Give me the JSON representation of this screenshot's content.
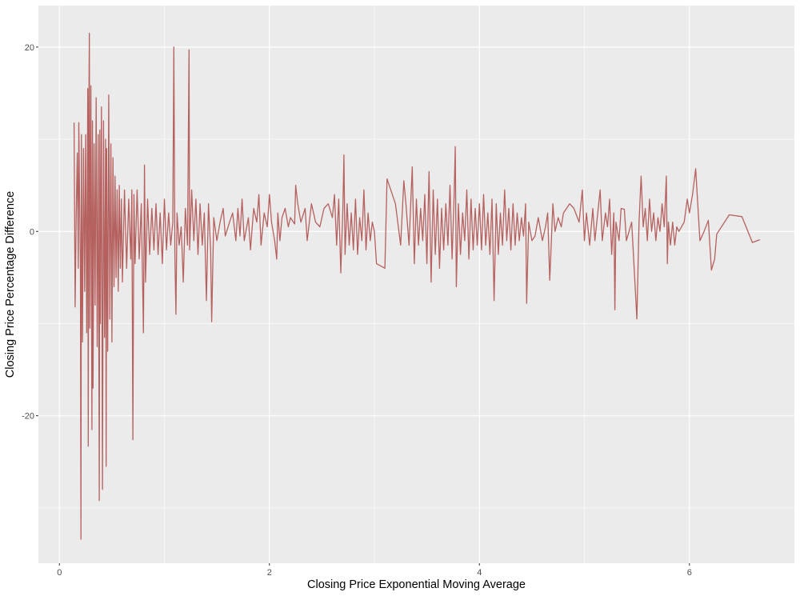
{
  "chart_data": {
    "type": "line",
    "title": "",
    "xlabel": "Closing Price Exponential Moving Average",
    "ylabel": "Closing Price Percentage Difference",
    "xlim": [
      -0.2,
      7.0
    ],
    "ylim": [
      -36.0,
      24.5
    ],
    "x_ticks": [
      0,
      2,
      4,
      6
    ],
    "x_tick_labels": [
      "0",
      "2",
      "4",
      "6"
    ],
    "x_minor_ticks": [
      1,
      3,
      5
    ],
    "y_ticks": [
      -20,
      0,
      20
    ],
    "y_tick_labels": [
      "-20",
      "0",
      "20"
    ],
    "y_minor_ticks": [
      -30,
      -10,
      10
    ],
    "grid": true,
    "legend": "none",
    "colors": {
      "panel_background": "#ebebeb",
      "grid": "#ffffff",
      "line": "#b5615f"
    },
    "series": [
      {
        "points": [
          [
            0.14,
            11.8
          ],
          [
            0.15,
            -8.2
          ],
          [
            0.16,
            2.0
          ],
          [
            0.17,
            8.5
          ],
          [
            0.18,
            -4.0
          ],
          [
            0.185,
            11.8
          ],
          [
            0.19,
            6.0
          ],
          [
            0.2,
            -3.5
          ],
          [
            0.205,
            -33.4
          ],
          [
            0.21,
            10.5
          ],
          [
            0.22,
            -12.0
          ],
          [
            0.23,
            9.0
          ],
          [
            0.24,
            -6.5
          ],
          [
            0.25,
            10.5
          ],
          [
            0.26,
            -11.0
          ],
          [
            0.27,
            15.5
          ],
          [
            0.275,
            -23.3
          ],
          [
            0.28,
            12.0
          ],
          [
            0.285,
            21.5
          ],
          [
            0.29,
            -10.5
          ],
          [
            0.3,
            15.8
          ],
          [
            0.31,
            -21.5
          ],
          [
            0.315,
            12.0
          ],
          [
            0.32,
            -17.0
          ],
          [
            0.33,
            9.5
          ],
          [
            0.34,
            -8.0
          ],
          [
            0.35,
            14.5
          ],
          [
            0.36,
            -12.5
          ],
          [
            0.37,
            10.5
          ],
          [
            0.38,
            -29.2
          ],
          [
            0.385,
            11.0
          ],
          [
            0.39,
            -10.0
          ],
          [
            0.4,
            13.5
          ],
          [
            0.41,
            -28.0
          ],
          [
            0.42,
            12.0
          ],
          [
            0.43,
            -11.5
          ],
          [
            0.44,
            10.0
          ],
          [
            0.445,
            -25.5
          ],
          [
            0.45,
            9.0
          ],
          [
            0.46,
            -13.0
          ],
          [
            0.47,
            14.8
          ],
          [
            0.48,
            -9.5
          ],
          [
            0.49,
            9.5
          ],
          [
            0.5,
            -12.0
          ],
          [
            0.51,
            8.0
          ],
          [
            0.52,
            -6.0
          ],
          [
            0.53,
            6.0
          ],
          [
            0.54,
            -5.0
          ],
          [
            0.55,
            4.5
          ],
          [
            0.56,
            -6.5
          ],
          [
            0.57,
            5.0
          ],
          [
            0.58,
            -4.0
          ],
          [
            0.59,
            3.5
          ],
          [
            0.6,
            -5.5
          ],
          [
            0.62,
            4.5
          ],
          [
            0.64,
            -4.0
          ],
          [
            0.66,
            3.5
          ],
          [
            0.68,
            -3.0
          ],
          [
            0.69,
            4.5
          ],
          [
            0.7,
            -22.6
          ],
          [
            0.71,
            4.0
          ],
          [
            0.72,
            -3.5
          ],
          [
            0.74,
            4.5
          ],
          [
            0.76,
            -3.0
          ],
          [
            0.78,
            3.0
          ],
          [
            0.8,
            -11.0
          ],
          [
            0.81,
            7.2
          ],
          [
            0.82,
            -5.5
          ],
          [
            0.84,
            3.5
          ],
          [
            0.86,
            -2.5
          ],
          [
            0.88,
            2.5
          ],
          [
            0.9,
            -2.0
          ],
          [
            0.92,
            3.0
          ],
          [
            0.94,
            -2.5
          ],
          [
            0.96,
            2.0
          ],
          [
            0.98,
            -3.5
          ],
          [
            1.0,
            3.5
          ],
          [
            1.02,
            -2.0
          ],
          [
            1.04,
            2.0
          ],
          [
            1.06,
            -1.5
          ],
          [
            1.08,
            1.0
          ],
          [
            1.09,
            20.0
          ],
          [
            1.1,
            -2.5
          ],
          [
            1.11,
            -9.0
          ],
          [
            1.12,
            2.0
          ],
          [
            1.14,
            -1.5
          ],
          [
            1.16,
            0.5
          ],
          [
            1.18,
            -5.5
          ],
          [
            1.2,
            2.5
          ],
          [
            1.22,
            -1.5
          ],
          [
            1.235,
            19.7
          ],
          [
            1.24,
            -2.0
          ],
          [
            1.26,
            4.5
          ],
          [
            1.28,
            -1.0
          ],
          [
            1.3,
            3.5
          ],
          [
            1.32,
            -2.5
          ],
          [
            1.34,
            3.0
          ],
          [
            1.36,
            -1.5
          ],
          [
            1.38,
            2.0
          ],
          [
            1.4,
            -7.5
          ],
          [
            1.42,
            3.0
          ],
          [
            1.44,
            -2.0
          ],
          [
            1.45,
            -9.8
          ],
          [
            1.47,
            1.5
          ],
          [
            1.5,
            -1.0
          ],
          [
            1.53,
            1.0
          ],
          [
            1.56,
            2.5
          ],
          [
            1.58,
            -0.5
          ],
          [
            1.62,
            1.0
          ],
          [
            1.65,
            2.0
          ],
          [
            1.68,
            -1.0
          ],
          [
            1.7,
            2.5
          ],
          [
            1.72,
            -0.5
          ],
          [
            1.74,
            3.5
          ],
          [
            1.76,
            -1.0
          ],
          [
            1.8,
            1.5
          ],
          [
            1.82,
            -2.0
          ],
          [
            1.85,
            2.5
          ],
          [
            1.88,
            1.0
          ],
          [
            1.9,
            4.0
          ],
          [
            1.92,
            -1.5
          ],
          [
            1.95,
            2.0
          ],
          [
            1.98,
            0.5
          ],
          [
            2.0,
            4.0
          ],
          [
            2.02,
            1.0
          ],
          [
            2.05,
            -1.0
          ],
          [
            2.07,
            -3.0
          ],
          [
            2.08,
            2.0
          ],
          [
            2.1,
            -1.0
          ],
          [
            2.12,
            1.5
          ],
          [
            2.15,
            2.5
          ],
          [
            2.18,
            0.5
          ],
          [
            2.2,
            1.5
          ],
          [
            2.24,
            0.8
          ],
          [
            2.25,
            5.0
          ],
          [
            2.27,
            3.0
          ],
          [
            2.3,
            1.0
          ],
          [
            2.34,
            2.5
          ],
          [
            2.36,
            -1.0
          ],
          [
            2.4,
            3.0
          ],
          [
            2.44,
            1.0
          ],
          [
            2.48,
            0.5
          ],
          [
            2.52,
            2.5
          ],
          [
            2.56,
            3.0
          ],
          [
            2.6,
            1.5
          ],
          [
            2.62,
            4.0
          ],
          [
            2.64,
            -1.5
          ],
          [
            2.66,
            3.5
          ],
          [
            2.68,
            -4.5
          ],
          [
            2.7,
            2.5
          ],
          [
            2.71,
            8.3
          ],
          [
            2.72,
            -2.5
          ],
          [
            2.74,
            3.0
          ],
          [
            2.76,
            -1.5
          ],
          [
            2.78,
            2.0
          ],
          [
            2.8,
            -2.0
          ],
          [
            2.82,
            3.5
          ],
          [
            2.84,
            -2.5
          ],
          [
            2.86,
            1.5
          ],
          [
            2.88,
            -1.0
          ],
          [
            2.9,
            4.5
          ],
          [
            2.92,
            -2.0
          ],
          [
            2.94,
            2.0
          ],
          [
            2.96,
            -1.0
          ],
          [
            2.98,
            1.0
          ],
          [
            3.0,
            0.0
          ],
          [
            3.02,
            -3.5
          ],
          [
            3.1,
            -4.0
          ],
          [
            3.12,
            5.7
          ],
          [
            3.2,
            3.0
          ],
          [
            3.25,
            -1.5
          ],
          [
            3.28,
            5.5
          ],
          [
            3.3,
            3.0
          ],
          [
            3.33,
            -1.5
          ],
          [
            3.36,
            7.0
          ],
          [
            3.38,
            -3.5
          ],
          [
            3.4,
            3.5
          ],
          [
            3.42,
            -1.5
          ],
          [
            3.44,
            2.5
          ],
          [
            3.46,
            -1.0
          ],
          [
            3.48,
            4.0
          ],
          [
            3.5,
            -3.5
          ],
          [
            3.52,
            6.5
          ],
          [
            3.54,
            -5.5
          ],
          [
            3.56,
            4.5
          ],
          [
            3.58,
            -2.5
          ],
          [
            3.6,
            3.5
          ],
          [
            3.62,
            -4.0
          ],
          [
            3.64,
            2.5
          ],
          [
            3.66,
            -2.0
          ],
          [
            3.68,
            3.0
          ],
          [
            3.7,
            -1.5
          ],
          [
            3.72,
            5.0
          ],
          [
            3.74,
            -3.0
          ],
          [
            3.76,
            4.0
          ],
          [
            3.77,
            9.2
          ],
          [
            3.78,
            -6.0
          ],
          [
            3.8,
            3.0
          ],
          [
            3.82,
            -2.5
          ],
          [
            3.84,
            2.0
          ],
          [
            3.86,
            -1.0
          ],
          [
            3.88,
            4.5
          ],
          [
            3.9,
            -3.0
          ],
          [
            3.92,
            3.5
          ],
          [
            3.94,
            -2.0
          ],
          [
            3.96,
            2.5
          ],
          [
            3.98,
            -1.5
          ],
          [
            4.0,
            3.0
          ],
          [
            4.02,
            -2.0
          ],
          [
            4.04,
            4.0
          ],
          [
            4.06,
            -1.5
          ],
          [
            4.08,
            2.0
          ],
          [
            4.1,
            -2.5
          ],
          [
            4.12,
            3.5
          ],
          [
            4.14,
            -7.5
          ],
          [
            4.16,
            3.0
          ],
          [
            4.18,
            -2.5
          ],
          [
            4.2,
            2.0
          ],
          [
            4.22,
            -1.5
          ],
          [
            4.24,
            4.5
          ],
          [
            4.26,
            -1.0
          ],
          [
            4.28,
            2.5
          ],
          [
            4.3,
            -2.0
          ],
          [
            4.32,
            3.0
          ],
          [
            4.34,
            -1.5
          ],
          [
            4.36,
            2.0
          ],
          [
            4.38,
            -1.0
          ],
          [
            4.4,
            1.5
          ],
          [
            4.42,
            -0.5
          ],
          [
            4.44,
            3.0
          ],
          [
            4.45,
            -7.8
          ],
          [
            4.47,
            1.0
          ],
          [
            4.5,
            -1.0
          ],
          [
            4.53,
            -0.5
          ],
          [
            4.56,
            1.5
          ],
          [
            4.6,
            -1.0
          ],
          [
            4.63,
            0.5
          ],
          [
            4.65,
            2.0
          ],
          [
            4.67,
            -5.3
          ],
          [
            4.7,
            3.0
          ],
          [
            4.72,
            0.0
          ],
          [
            4.75,
            1.5
          ],
          [
            4.78,
            0.5
          ],
          [
            4.8,
            2.0
          ],
          [
            4.86,
            3.0
          ],
          [
            4.9,
            2.5
          ],
          [
            4.95,
            1.0
          ],
          [
            4.98,
            4.5
          ],
          [
            5.0,
            -1.0
          ],
          [
            5.02,
            2.0
          ],
          [
            5.05,
            -1.5
          ],
          [
            5.08,
            2.5
          ],
          [
            5.1,
            -1.0
          ],
          [
            5.15,
            4.5
          ],
          [
            5.17,
            -1.0
          ],
          [
            5.2,
            2.0
          ],
          [
            5.22,
            0.5
          ],
          [
            5.24,
            3.5
          ],
          [
            5.26,
            -2.5
          ],
          [
            5.28,
            2.0
          ],
          [
            5.29,
            -8.5
          ],
          [
            5.3,
            1.0
          ],
          [
            5.33,
            -1.0
          ],
          [
            5.35,
            2.5
          ],
          [
            5.38,
            2.4
          ],
          [
            5.4,
            -1.0
          ],
          [
            5.45,
            1.0
          ],
          [
            5.5,
            -9.5
          ],
          [
            5.52,
            1.0
          ],
          [
            5.54,
            6.0
          ],
          [
            5.56,
            0.5
          ],
          [
            5.58,
            2.5
          ],
          [
            5.6,
            -1.0
          ],
          [
            5.62,
            3.5
          ],
          [
            5.64,
            0.0
          ],
          [
            5.66,
            2.0
          ],
          [
            5.68,
            -1.0
          ],
          [
            5.7,
            1.5
          ],
          [
            5.72,
            0.0
          ],
          [
            5.74,
            3.0
          ],
          [
            5.76,
            0.5
          ],
          [
            5.78,
            6.0
          ],
          [
            5.79,
            -3.5
          ],
          [
            5.8,
            1.0
          ],
          [
            5.82,
            -1.5
          ],
          [
            5.84,
            1.0
          ],
          [
            5.86,
            -1.5
          ],
          [
            5.88,
            0.5
          ],
          [
            5.9,
            0.0
          ],
          [
            5.95,
            1.0
          ],
          [
            5.98,
            3.5
          ],
          [
            6.0,
            2.0
          ],
          [
            6.03,
            4.0
          ],
          [
            6.06,
            6.8
          ],
          [
            6.1,
            -1.0
          ],
          [
            6.14,
            0.0
          ],
          [
            6.18,
            1.2
          ],
          [
            6.21,
            -4.2
          ],
          [
            6.24,
            -3.0
          ],
          [
            6.26,
            -0.3
          ],
          [
            6.38,
            1.8
          ],
          [
            6.5,
            1.6
          ],
          [
            6.6,
            -1.2
          ],
          [
            6.67,
            -0.9
          ]
        ]
      }
    ]
  }
}
